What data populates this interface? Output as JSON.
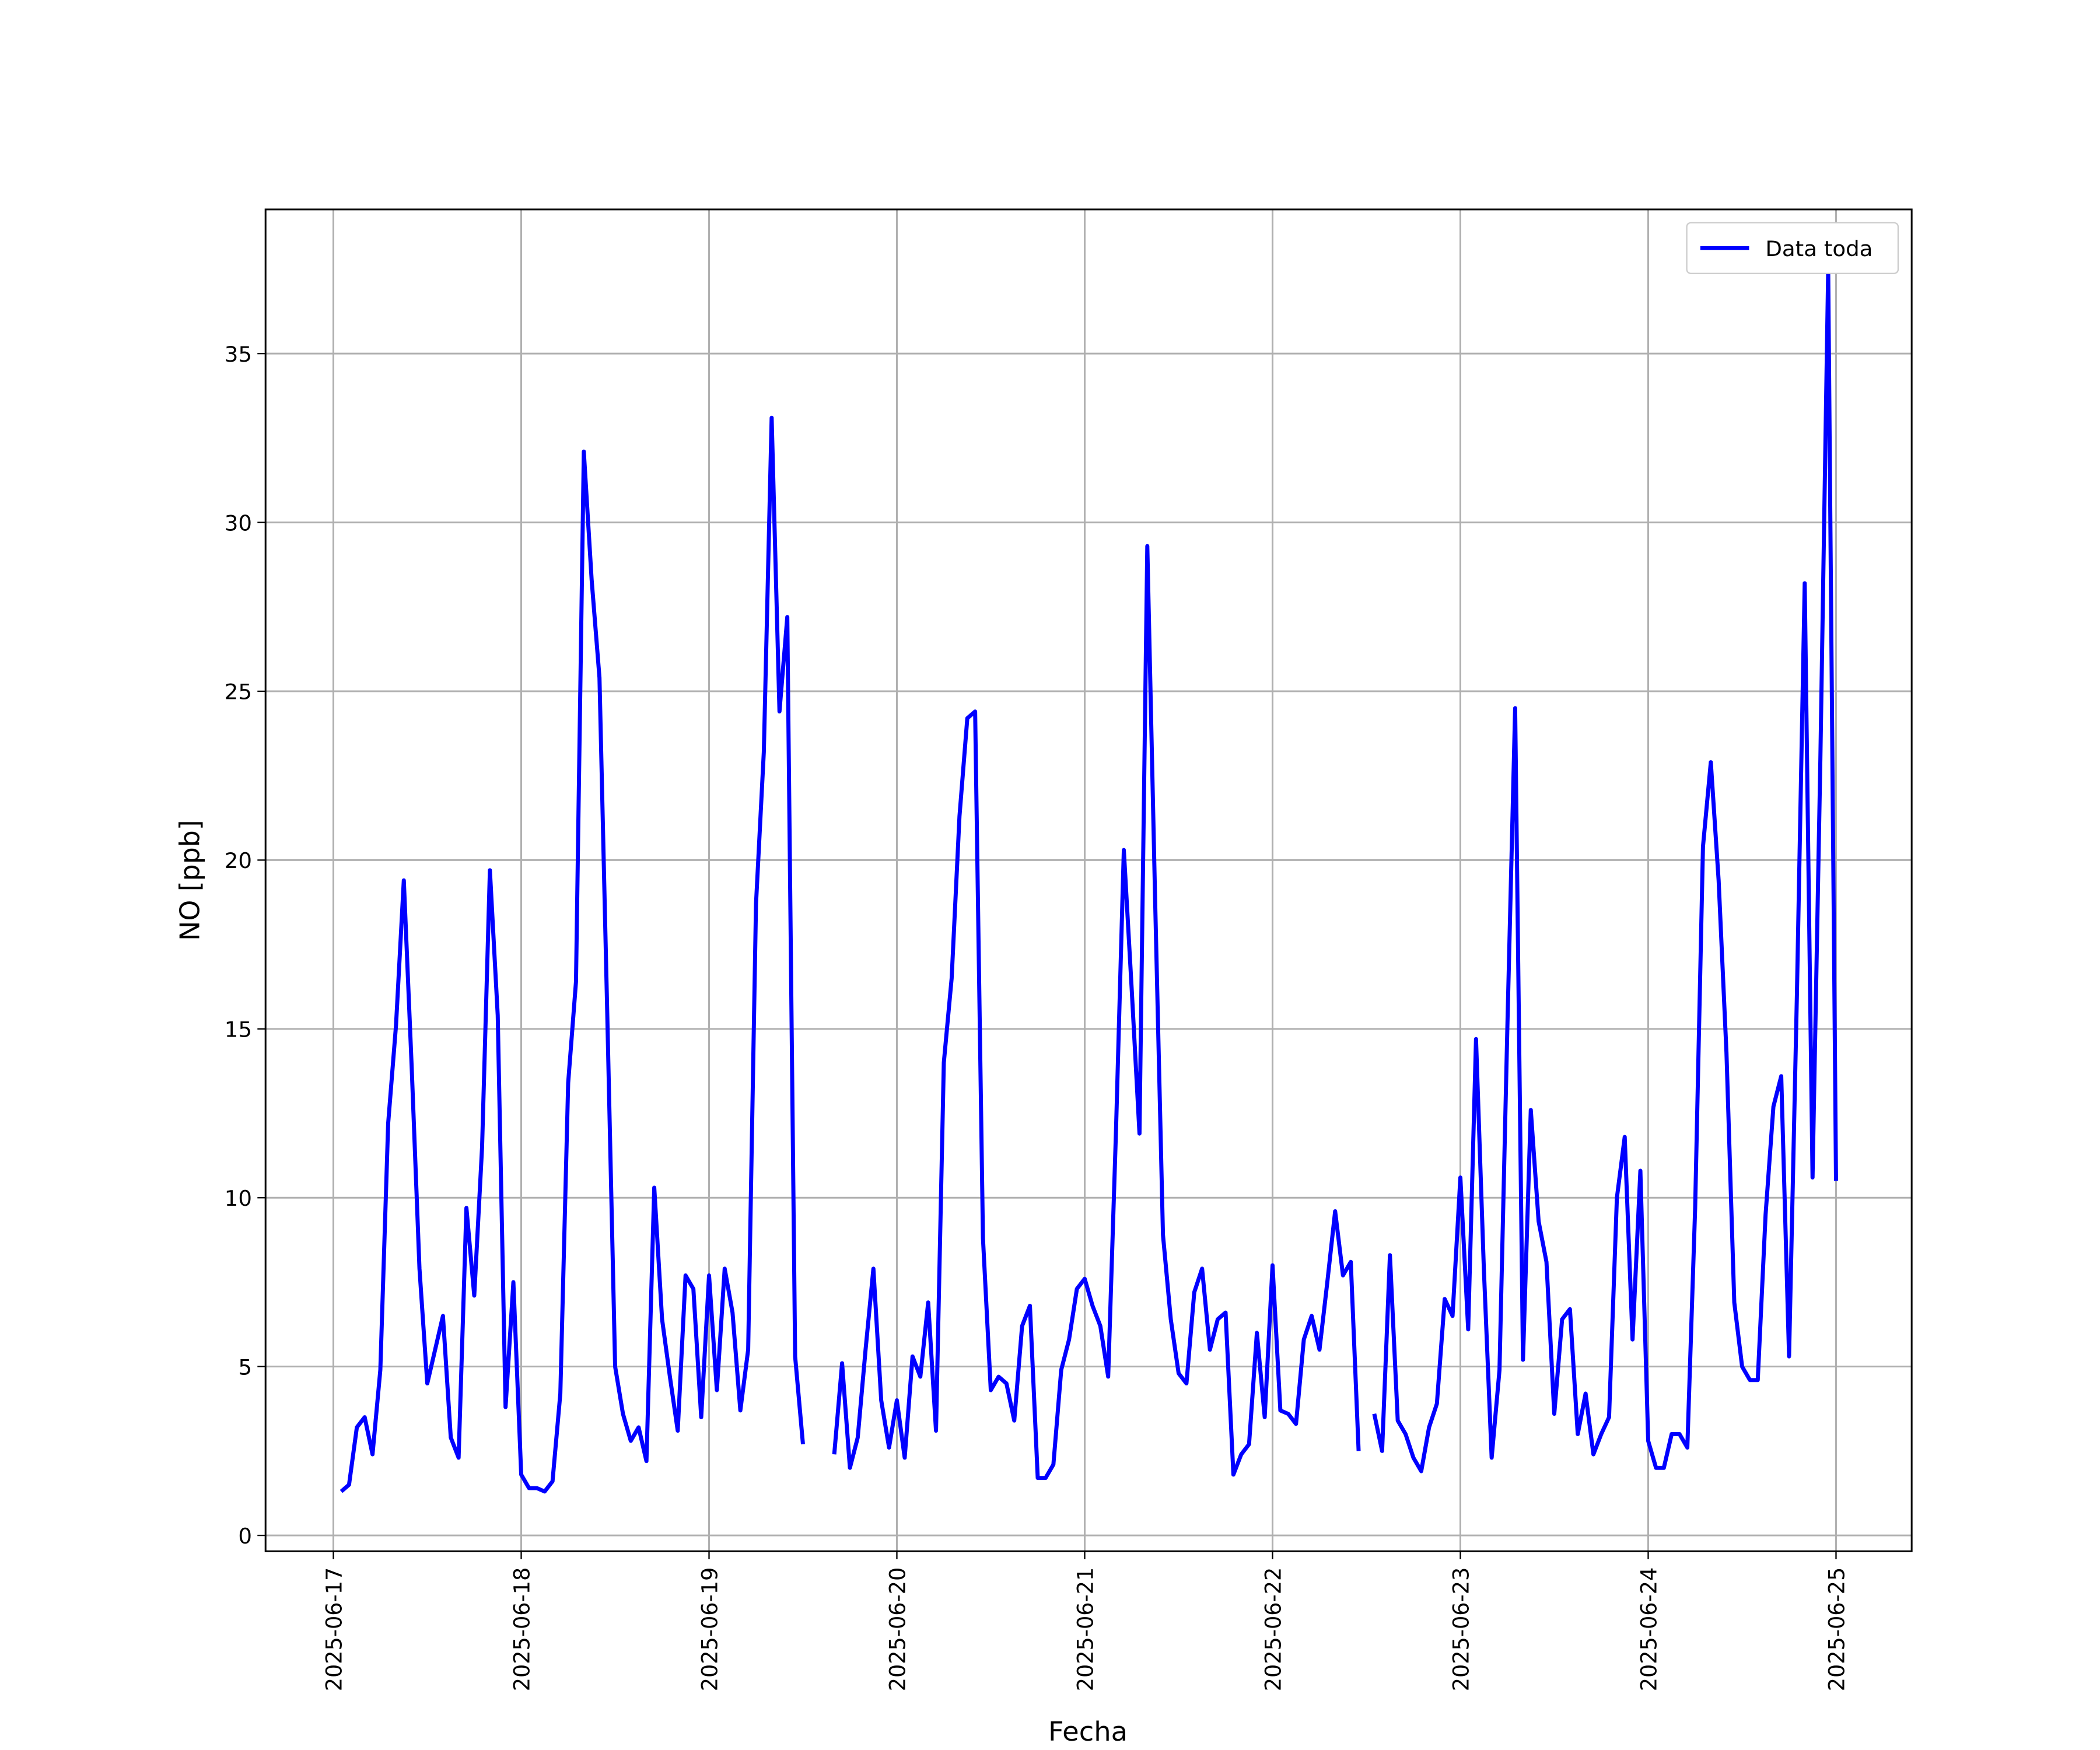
{
  "chart_data": {
    "type": "line",
    "xlabel": "Fecha",
    "ylabel": "NO [ppb]",
    "legend": "upper right",
    "grid": true,
    "xlim": [
      "2025-06-16 15:20",
      "2025-06-25 09:40"
    ],
    "ylim": [
      -0.47,
      39.27
    ],
    "yticks": [
      0,
      5,
      10,
      15,
      20,
      25,
      30,
      35
    ],
    "xticks": [
      "2025-06-17",
      "2025-06-18",
      "2025-06-19",
      "2025-06-20",
      "2025-06-21",
      "2025-06-22",
      "2025-06-23",
      "2025-06-24",
      "2025-06-25"
    ],
    "x": [
      "2025-06-17 01:00",
      "2025-06-17 02:00",
      "2025-06-17 03:00",
      "2025-06-17 04:00",
      "2025-06-17 05:00",
      "2025-06-17 06:00",
      "2025-06-17 07:00",
      "2025-06-17 08:00",
      "2025-06-17 09:00",
      "2025-06-17 10:00",
      "2025-06-17 11:00",
      "2025-06-17 12:00",
      "2025-06-17 13:00",
      "2025-06-17 14:00",
      "2025-06-17 15:00",
      "2025-06-17 16:00",
      "2025-06-17 17:00",
      "2025-06-17 18:00",
      "2025-06-17 19:00",
      "2025-06-17 20:00",
      "2025-06-17 21:00",
      "2025-06-17 22:00",
      "2025-06-17 23:00",
      "2025-06-18 00:00",
      "2025-06-18 01:00",
      "2025-06-18 02:00",
      "2025-06-18 03:00",
      "2025-06-18 04:00",
      "2025-06-18 05:00",
      "2025-06-18 06:00",
      "2025-06-18 07:00",
      "2025-06-18 08:00",
      "2025-06-18 09:00",
      "2025-06-18 10:00",
      "2025-06-18 11:00",
      "2025-06-18 12:00",
      "2025-06-18 13:00",
      "2025-06-18 14:00",
      "2025-06-18 15:00",
      "2025-06-18 16:00",
      "2025-06-18 17:00",
      "2025-06-18 18:00",
      "2025-06-18 19:00",
      "2025-06-18 20:00",
      "2025-06-18 21:00",
      "2025-06-18 22:00",
      "2025-06-18 23:00",
      "2025-06-19 00:00",
      "2025-06-19 01:00",
      "2025-06-19 02:00",
      "2025-06-19 03:00",
      "2025-06-19 04:00",
      "2025-06-19 05:00",
      "2025-06-19 06:00",
      "2025-06-19 07:00",
      "2025-06-19 08:00",
      "2025-06-19 09:00",
      "2025-06-19 10:00",
      "2025-06-19 11:00",
      "2025-06-19 12:00",
      "2025-06-19 13:00",
      "2025-06-19 14:00",
      "2025-06-19 15:00",
      "2025-06-19 16:00",
      "2025-06-19 17:00",
      "2025-06-19 18:00",
      "2025-06-19 19:00",
      "2025-06-19 20:00",
      "2025-06-19 21:00",
      "2025-06-19 22:00",
      "2025-06-19 23:00",
      "2025-06-20 00:00",
      "2025-06-20 01:00",
      "2025-06-20 02:00",
      "2025-06-20 03:00",
      "2025-06-20 04:00",
      "2025-06-20 05:00",
      "2025-06-20 06:00",
      "2025-06-20 07:00",
      "2025-06-20 08:00",
      "2025-06-20 09:00",
      "2025-06-20 10:00",
      "2025-06-20 11:00",
      "2025-06-20 12:00",
      "2025-06-20 13:00",
      "2025-06-20 14:00",
      "2025-06-20 15:00",
      "2025-06-20 16:00",
      "2025-06-20 17:00",
      "2025-06-20 18:00",
      "2025-06-20 19:00",
      "2025-06-20 20:00",
      "2025-06-20 21:00",
      "2025-06-20 22:00",
      "2025-06-20 23:00",
      "2025-06-21 00:00",
      "2025-06-21 01:00",
      "2025-06-21 02:00",
      "2025-06-21 03:00",
      "2025-06-21 04:00",
      "2025-06-21 05:00",
      "2025-06-21 06:00",
      "2025-06-21 07:00",
      "2025-06-21 08:00",
      "2025-06-21 09:00",
      "2025-06-21 10:00",
      "2025-06-21 11:00",
      "2025-06-21 12:00",
      "2025-06-21 13:00",
      "2025-06-21 14:00",
      "2025-06-21 15:00",
      "2025-06-21 16:00",
      "2025-06-21 17:00",
      "2025-06-21 18:00",
      "2025-06-21 19:00",
      "2025-06-21 20:00",
      "2025-06-21 21:00",
      "2025-06-21 22:00",
      "2025-06-21 23:00",
      "2025-06-22 00:00",
      "2025-06-22 01:00",
      "2025-06-22 02:00",
      "2025-06-22 03:00",
      "2025-06-22 04:00",
      "2025-06-22 05:00",
      "2025-06-22 06:00",
      "2025-06-22 07:00",
      "2025-06-22 08:00",
      "2025-06-22 09:00",
      "2025-06-22 10:00",
      "2025-06-22 11:00",
      "2025-06-22 12:00",
      "2025-06-22 13:00",
      "2025-06-22 14:00",
      "2025-06-22 15:00",
      "2025-06-22 16:00",
      "2025-06-22 17:00",
      "2025-06-22 18:00",
      "2025-06-22 19:00",
      "2025-06-22 20:00",
      "2025-06-22 21:00",
      "2025-06-22 22:00",
      "2025-06-22 23:00",
      "2025-06-23 00:00",
      "2025-06-23 01:00",
      "2025-06-23 02:00",
      "2025-06-23 03:00",
      "2025-06-23 04:00",
      "2025-06-23 05:00",
      "2025-06-23 06:00",
      "2025-06-23 07:00",
      "2025-06-23 08:00",
      "2025-06-23 09:00",
      "2025-06-23 10:00",
      "2025-06-23 11:00",
      "2025-06-23 12:00",
      "2025-06-23 13:00",
      "2025-06-23 14:00",
      "2025-06-23 15:00",
      "2025-06-23 16:00",
      "2025-06-23 17:00",
      "2025-06-23 18:00",
      "2025-06-23 19:00",
      "2025-06-23 20:00",
      "2025-06-23 21:00",
      "2025-06-23 22:00",
      "2025-06-23 23:00",
      "2025-06-24 00:00",
      "2025-06-24 01:00",
      "2025-06-24 02:00",
      "2025-06-24 03:00",
      "2025-06-24 04:00",
      "2025-06-24 05:00",
      "2025-06-24 06:00",
      "2025-06-24 07:00",
      "2025-06-24 08:00",
      "2025-06-24 09:00",
      "2025-06-24 10:00",
      "2025-06-24 11:00",
      "2025-06-24 12:00",
      "2025-06-24 13:00",
      "2025-06-24 14:00",
      "2025-06-24 15:00",
      "2025-06-24 16:00",
      "2025-06-24 17:00",
      "2025-06-24 18:00",
      "2025-06-24 19:00",
      "2025-06-24 20:00",
      "2025-06-24 21:00",
      "2025-06-24 22:00",
      "2025-06-24 23:00",
      "2025-06-25 00:00"
    ],
    "series": [
      {
        "name": "Data toda",
        "color": "#0000ff",
        "values": [
          1.3,
          1.5,
          3.2,
          3.5,
          2.4,
          4.9,
          12.2,
          15.1,
          19.4,
          13.9,
          7.9,
          4.5,
          5.5,
          6.5,
          2.9,
          2.3,
          9.7,
          7.1,
          11.5,
          19.7,
          15.4,
          3.8,
          7.5,
          1.8,
          1.4,
          1.4,
          1.3,
          1.6,
          4.2,
          13.4,
          16.4,
          32.1,
          28.3,
          25.4,
          15.4,
          5.0,
          3.6,
          2.8,
          3.2,
          2.2,
          10.3,
          6.4,
          4.7,
          3.1,
          7.7,
          7.3,
          3.5,
          7.7,
          4.3,
          7.9,
          6.6,
          3.7,
          5.5,
          18.7,
          23.2,
          33.1,
          24.4,
          27.2,
          5.3,
          2.7,
          null,
          null,
          null,
          2.4,
          5.1,
          2.0,
          2.9,
          5.5,
          7.9,
          4.0,
          2.6,
          4.0,
          2.3,
          5.3,
          4.7,
          6.9,
          3.1,
          14.0,
          16.5,
          21.3,
          24.2,
          24.4,
          8.8,
          4.3,
          4.7,
          4.5,
          3.4,
          6.2,
          6.8,
          1.7,
          1.7,
          2.1,
          4.9,
          5.8,
          7.3,
          7.6,
          6.8,
          6.2,
          4.7,
          12.0,
          20.3,
          16.2,
          11.9,
          29.3,
          18.8,
          8.9,
          6.4,
          4.8,
          4.5,
          7.2,
          7.9,
          5.5,
          6.4,
          6.6,
          1.8,
          2.4,
          2.7,
          6.0,
          3.5,
          8.0,
          3.7,
          3.6,
          3.3,
          5.8,
          6.5,
          5.5,
          7.5,
          9.6,
          7.7,
          8.1,
          2.5,
          null,
          3.6,
          2.5,
          8.3,
          3.4,
          3.0,
          2.3,
          1.9,
          3.2,
          3.9,
          7.0,
          6.5,
          10.6,
          6.1,
          14.7,
          7.9,
          2.3,
          4.9,
          15.0,
          24.5,
          5.2,
          12.6,
          9.3,
          8.1,
          3.6,
          6.4,
          6.7,
          3.0,
          4.2,
          2.4,
          3.0,
          3.5,
          10.0,
          11.8,
          5.8,
          10.8,
          2.8,
          2.0,
          2.0,
          3.0,
          3.0,
          2.6,
          9.7,
          20.4,
          22.9,
          19.4,
          14.3,
          6.9,
          5.0,
          4.6,
          4.6,
          9.5,
          12.7,
          13.6,
          5.3,
          16.0,
          28.2,
          10.6,
          23.0,
          37.5,
          10.5
        ]
      }
    ]
  }
}
